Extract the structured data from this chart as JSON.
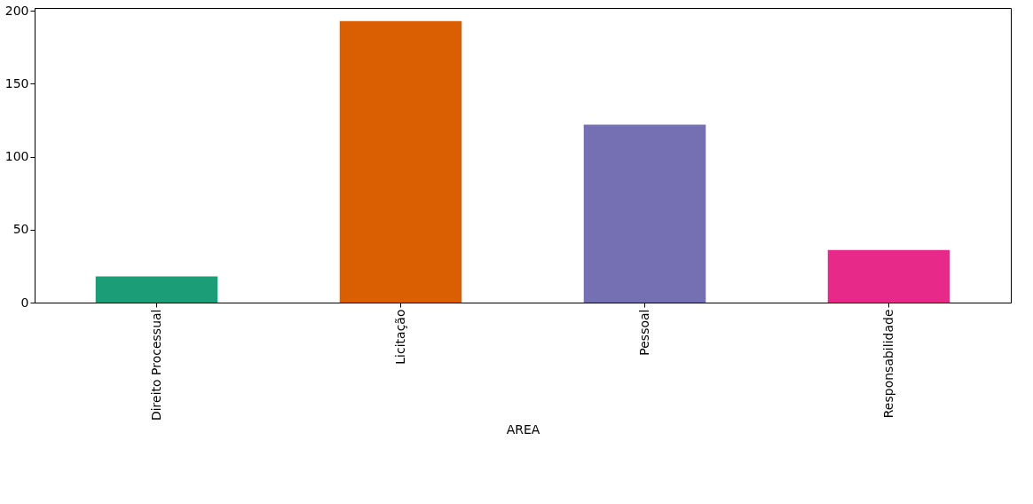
{
  "chart_data": {
    "type": "bar",
    "xlabel": "AREA",
    "categories": [
      "Direito Processual",
      "Licitação",
      "Pessoal",
      "Responsabilidade"
    ],
    "values": [
      18,
      193,
      122,
      36
    ],
    "colors": [
      "#1b9e77",
      "#d95f02",
      "#7570b3",
      "#e7298a"
    ],
    "ylim": [
      0,
      202
    ],
    "yticks": [
      0,
      50,
      100,
      150,
      200
    ],
    "grid": false
  }
}
